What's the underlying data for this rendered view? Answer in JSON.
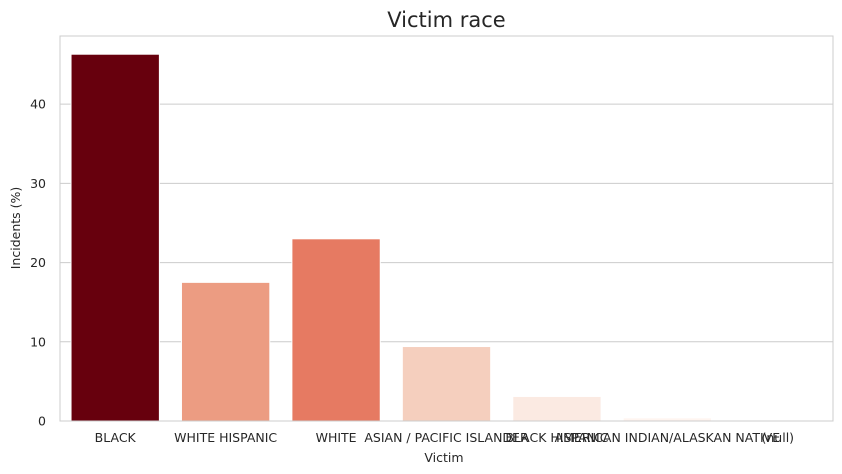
{
  "chart_data": {
    "type": "bar",
    "title": "Victim race",
    "xlabel": "Victim",
    "ylabel": "Incidents (%)",
    "categories": [
      "BLACK",
      "WHITE HISPANIC",
      "WHITE",
      "ASIAN / PACIFIC ISLANDER",
      "BLACK HISPANIC",
      "AMERICAN INDIAN/ALASKAN NATIVE",
      "(null)"
    ],
    "values": [
      46.3,
      17.5,
      23.0,
      9.4,
      3.1,
      0.4,
      0.1
    ],
    "colors": [
      "#67000d",
      "#ec9c82",
      "#e67a62",
      "#f5cfbe",
      "#fbeae2",
      "#fff5f0",
      "#fff5f0"
    ],
    "ylim": [
      0,
      48.6
    ],
    "yticks": [
      0,
      10,
      20,
      30,
      40
    ],
    "grid": "horizontal"
  }
}
